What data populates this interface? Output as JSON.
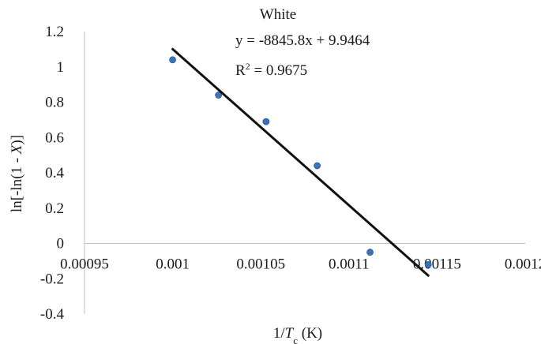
{
  "chart_data": {
    "type": "scatter",
    "title": "White",
    "xlabel": "1/T_c (K)",
    "xlabel_parts": {
      "prefix": "1/",
      "var": "T",
      "sub": "c",
      "suffix": " (K)"
    },
    "ylabel": "ln[-ln(1 - X)]",
    "ylabel_parts": {
      "prefix": "ln[-ln(1 - ",
      "var": "X",
      "suffix": ")]"
    },
    "xlim": [
      0.00095,
      0.0012
    ],
    "ylim": [
      -0.4,
      1.2
    ],
    "x_ticks": [
      0.00095,
      0.001,
      0.00105,
      0.0011,
      0.00115,
      0.0012
    ],
    "x_tick_labels": [
      "0.00095",
      "0.001",
      "0.00105",
      "0.0011",
      "0.00115",
      "0.0012"
    ],
    "y_ticks": [
      -0.4,
      -0.2,
      0,
      0.2,
      0.4,
      0.6,
      0.8,
      1,
      1.2
    ],
    "y_tick_labels": [
      "-0.4",
      "-0.2",
      "0",
      "0.2",
      "0.4",
      "0.6",
      "0.8",
      "1",
      "1.2"
    ],
    "grid": false,
    "series": [
      {
        "x": [
          0.001,
          0.001026,
          0.001053,
          0.001082,
          0.001112,
          0.001145
        ],
        "y": [
          1.04,
          0.84,
          0.69,
          0.44,
          -0.05,
          -0.12
        ],
        "color": "#3a73b8"
      }
    ],
    "trendline": {
      "slope": -8845.8,
      "intercept": 9.9464,
      "x_range": [
        0.001,
        0.001145
      ],
      "color": "#111111",
      "equation_label": "y = -8845.8x + 9.9464",
      "r2_label_prefix": "R",
      "r2_label_sup": "2",
      "r2_label_value": " = 0.9675"
    }
  }
}
